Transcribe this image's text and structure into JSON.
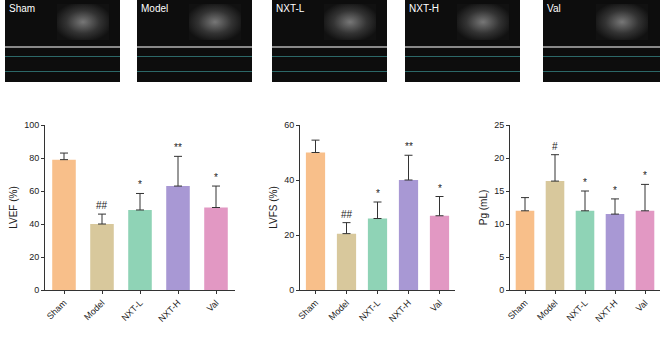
{
  "image_panels": [
    "Sham",
    "Model",
    "NXT-L",
    "NXT-H",
    "Val"
  ],
  "chart_data": [
    {
      "type": "bar",
      "y_label": "LVEF (%)",
      "categories": [
        "Sham",
        "Model",
        "NXT-L",
        "NXT-H",
        "Val"
      ],
      "values": [
        79,
        40,
        48.5,
        63,
        50
      ],
      "errors": [
        4,
        6,
        10,
        18,
        13
      ],
      "colors": [
        "#f8bf8a",
        "#d8c89c",
        "#8fd3b6",
        "#a898d4",
        "#e298c3"
      ],
      "ylim": [
        0,
        100
      ],
      "yticks": [
        0,
        20,
        40,
        60,
        80,
        100
      ],
      "grid": false,
      "annotations": [
        {
          "category": "Model",
          "text": "##"
        },
        {
          "category": "NXT-L",
          "text": "*"
        },
        {
          "category": "NXT-H",
          "text": "**"
        },
        {
          "category": "Val",
          "text": "*"
        }
      ]
    },
    {
      "type": "bar",
      "y_label": "LVFS (%)",
      "categories": [
        "Sham",
        "Model",
        "NXT-L",
        "NXT-H",
        "Val"
      ],
      "values": [
        50,
        20.5,
        26,
        40,
        27
      ],
      "errors": [
        4.5,
        4,
        6,
        9,
        7
      ],
      "colors": [
        "#f8bf8a",
        "#d8c89c",
        "#8fd3b6",
        "#a898d4",
        "#e298c3"
      ],
      "ylim": [
        0,
        60
      ],
      "yticks": [
        0,
        20,
        40,
        60
      ],
      "grid": false,
      "annotations": [
        {
          "category": "Model",
          "text": "##"
        },
        {
          "category": "NXT-L",
          "text": "*"
        },
        {
          "category": "NXT-H",
          "text": "**"
        },
        {
          "category": "Val",
          "text": "*"
        }
      ]
    },
    {
      "type": "bar",
      "y_label": "Pg (mL)",
      "categories": [
        "Sham",
        "Model",
        "NXT-L",
        "NXT-H",
        "Val"
      ],
      "values": [
        12,
        16.5,
        12,
        11.5,
        12
      ],
      "errors": [
        2,
        4,
        3,
        2.3,
        4
      ],
      "colors": [
        "#f8bf8a",
        "#d8c89c",
        "#8fd3b6",
        "#a898d4",
        "#e298c3"
      ],
      "ylim": [
        0,
        25
      ],
      "yticks": [
        0,
        5,
        10,
        15,
        20,
        25
      ],
      "grid": false,
      "annotations": [
        {
          "category": "Model",
          "text": "#"
        },
        {
          "category": "NXT-L",
          "text": "*"
        },
        {
          "category": "NXT-H",
          "text": "*"
        },
        {
          "category": "Val",
          "text": "*"
        }
      ]
    }
  ]
}
